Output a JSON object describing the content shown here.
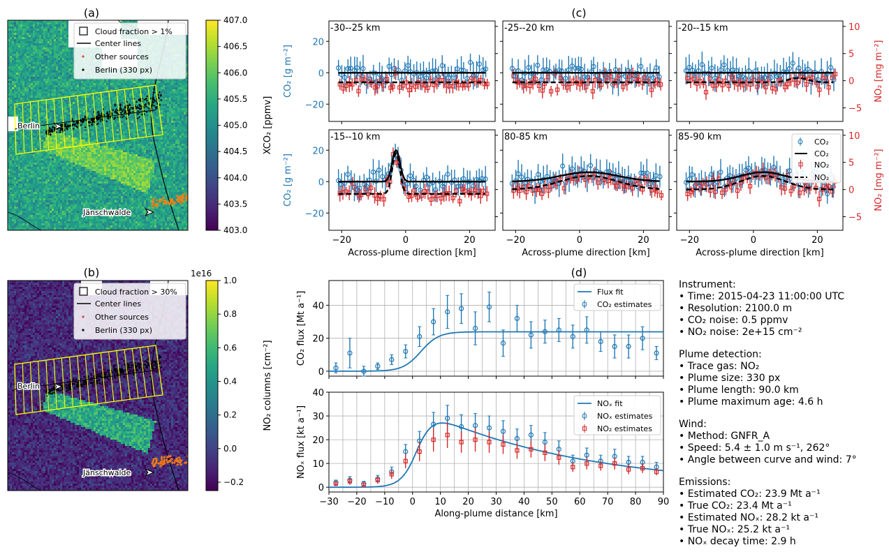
{
  "colors": {
    "co2": "#1f77b4",
    "no2": "#d62728",
    "sources": "#ff7f0e",
    "frame": "#ffff00"
  },
  "panel_labels": {
    "a": "(a)",
    "b": "(b)",
    "c": "(c)",
    "d": "(d)"
  },
  "map_a": {
    "legend": [
      "Cloud fraction > 1%",
      "Center lines",
      "Other sources",
      "Berlin (330 px)"
    ],
    "places": [
      "Berlin",
      "Jänschwalde"
    ],
    "colorbar": {
      "label": "XCO₂ [ppmv]",
      "ticks": [
        "403.0",
        "403.5",
        "404.0",
        "404.5",
        "405.0",
        "405.5",
        "406.0",
        "406.5",
        "407.0"
      ],
      "vmin": 403.0,
      "vmax": 407.0,
      "cmap": "viridis"
    }
  },
  "map_b": {
    "legend": [
      "Cloud fraction > 30%",
      "Center lines",
      "Other sources",
      "Berlin (330 px)"
    ],
    "places": [
      "Berlin",
      "Jänschwalde"
    ],
    "colorbar": {
      "label": "NO₂ columns [cm⁻²]",
      "offset": "1e16",
      "ticks": [
        "−0.2",
        "0.0",
        "0.2",
        "0.4",
        "0.6",
        "0.8",
        "1.0"
      ],
      "vmin": -0.25,
      "vmax": 1.0,
      "cmap": "viridis"
    }
  },
  "profiles": {
    "xlabel": "Across-plume direction [km]",
    "ylabel_co2": "CO₂ [g m⁻²]",
    "ylabel_no2": "NO₂ [mg m⁻²]",
    "legend": [
      "CO₂",
      "CO₂",
      "NO₂",
      "NO₂"
    ],
    "xticks": [
      "−20",
      "0",
      "20"
    ],
    "co2_ticks": [
      "−20",
      "0",
      "20"
    ],
    "no2_ticks": [
      "−5",
      "0",
      "5",
      "10"
    ],
    "titles": [
      "-30--25 km",
      "-25--20 km",
      "-20--15 km",
      "-15--10 km",
      "80-85 km",
      "85-90 km"
    ]
  },
  "chart_data": [
    {
      "type": "scatter",
      "panel": "(c)",
      "x_range": [
        -24,
        28
      ],
      "y_range_co2": [
        -31,
        33
      ],
      "y_range_no2": [
        -7.5,
        11
      ],
      "panels": [
        {
          "title": "-30--25 km",
          "co2_fit_amp": 0,
          "co2_bg": 0,
          "no2_fit_amp": 0,
          "no2_bg": -0.3,
          "width": 6,
          "center": 0
        },
        {
          "title": "-25--20 km",
          "co2_fit_amp": 0,
          "co2_bg": 0,
          "no2_fit_amp": 0,
          "no2_bg": -0.3,
          "width": 6,
          "center": 0
        },
        {
          "title": "-20--15 km",
          "co2_fit_amp": 0,
          "co2_bg": 0,
          "no2_fit_amp": 0.8,
          "no2_bg": -0.3,
          "width": 3,
          "center": 14
        },
        {
          "title": "-15--10 km",
          "co2_fit_amp": 20,
          "co2_bg": 0,
          "no2_fit_amp": 7.5,
          "no2_bg": -0.8,
          "width": 1.2,
          "center": -3
        },
        {
          "title": "80-85 km",
          "co2_fit_amp": 6,
          "co2_bg": 0,
          "no2_fit_amp": 2.5,
          "no2_bg": 0,
          "width": 9,
          "center": 3
        },
        {
          "title": "85-90 km",
          "co2_fit_amp": 6,
          "co2_bg": 0,
          "no2_fit_amp": 2.5,
          "no2_bg": 0,
          "width": 7,
          "center": 3
        }
      ]
    },
    {
      "type": "line",
      "panel": "(d) upper",
      "ylabel": "CO₂ flux [Mt a⁻¹]",
      "ylim": [
        -3,
        55
      ],
      "xlim": [
        -30,
        90
      ],
      "legend": [
        "Flux fit",
        "CO₂ estimates"
      ],
      "x": [
        -27.5,
        -22.5,
        -17.5,
        -12.5,
        -7.5,
        -2.5,
        2.5,
        7.5,
        12.5,
        17.5,
        22.5,
        27.5,
        32.5,
        37.5,
        42.5,
        47.5,
        52.5,
        57.5,
        62.5,
        67.5,
        72.5,
        77.5,
        82.5,
        87.5
      ],
      "estimates": [
        2,
        11,
        0,
        3,
        7,
        12,
        21,
        30,
        36,
        38,
        26,
        39,
        17,
        32,
        22,
        24,
        25,
        21,
        25,
        18,
        15,
        15,
        20,
        11
      ],
      "errors": [
        3,
        9,
        3,
        2,
        3,
        4,
        6,
        8,
        10,
        9,
        10,
        9,
        8,
        8,
        8,
        7,
        7,
        7,
        8,
        6,
        7,
        7,
        7,
        4
      ],
      "fit_plateau": 23.9
    },
    {
      "type": "line",
      "panel": "(d) lower",
      "ylabel": "NOₓ flux [kt a⁻¹]",
      "xlabel": "Along-plume distance [km]",
      "ylim": [
        -2,
        40
      ],
      "xlim": [
        -30,
        90
      ],
      "xticks": [
        "−30",
        "−20",
        "−10",
        "0",
        "10",
        "20",
        "30",
        "40",
        "50",
        "60",
        "70",
        "80",
        "90"
      ],
      "legend": [
        "NOₓ fit",
        "NOₓ estimates",
        "NO₂ estimates"
      ],
      "x": [
        -27.5,
        -22.5,
        -17.5,
        -12.5,
        -7.5,
        -2.5,
        2.5,
        7.5,
        12.5,
        17.5,
        22.5,
        27.5,
        32.5,
        37.5,
        42.5,
        47.5,
        52.5,
        57.5,
        62.5,
        67.5,
        72.5,
        77.5,
        82.5,
        87.5
      ],
      "nox_estimates": [
        2,
        3,
        1.5,
        3.5,
        6.5,
        15,
        19.5,
        26.5,
        29,
        25.5,
        26,
        25,
        23.5,
        20.5,
        22,
        19,
        16,
        11,
        13.5,
        11,
        13,
        10.5,
        10.5,
        8.5
      ],
      "nox_errors": [
        1,
        1.5,
        1,
        1.5,
        2,
        3,
        4,
        5,
        5.5,
        5,
        5,
        5,
        4.5,
        4,
        4,
        4,
        3.5,
        2.5,
        3,
        2.5,
        3,
        2.5,
        2.5,
        2
      ],
      "no2_estimates": [
        1.5,
        2.5,
        1,
        3,
        5.5,
        11,
        15,
        20,
        22,
        19,
        20,
        19,
        18,
        15.5,
        16,
        14.5,
        12.5,
        8.5,
        10,
        9,
        10,
        7.5,
        8,
        6.5
      ],
      "no2_errors": [
        1,
        1.5,
        1,
        1.5,
        2,
        3,
        4,
        5,
        5.5,
        4.5,
        5,
        4.5,
        4,
        3.5,
        3.5,
        3.5,
        3,
        2,
        2.5,
        2,
        2.5,
        2,
        2,
        1.5
      ],
      "fit_peak": 28.2,
      "decay_time_h": 2.9
    }
  ],
  "info": {
    "sections": [
      [
        "Instrument:",
        "• Time: 2015-04-23 11:00:00 UTC",
        "• Resolution: 2100.0 m",
        "• CO₂ noise: 0.5 ppmv",
        "• NO₂ noise: 2e+15 cm⁻²"
      ],
      [
        "Plume detection:",
        "• Trace gas: NO₂",
        "• Plume size: 330 px",
        "• Plume length: 90.0 km",
        "• Plume maximum age: 4.6 h"
      ],
      [
        "Wind:",
        "• Method: GNFR_A",
        "• Speed: 5.4 ± 1.0 m s⁻¹, 262°",
        "• Angle between curve and wind: 7°"
      ],
      [
        "Emissions:",
        "• Estimated CO₂: 23.9 Mt a⁻¹",
        "• True CO₂: 23.4 Mt a⁻¹",
        "• Estimated NOₓ: 28.2 kt a⁻¹",
        "• True NOₓ: 25.2 kt a⁻¹",
        "• NOₓ decay time: 2.9 h"
      ]
    ]
  }
}
